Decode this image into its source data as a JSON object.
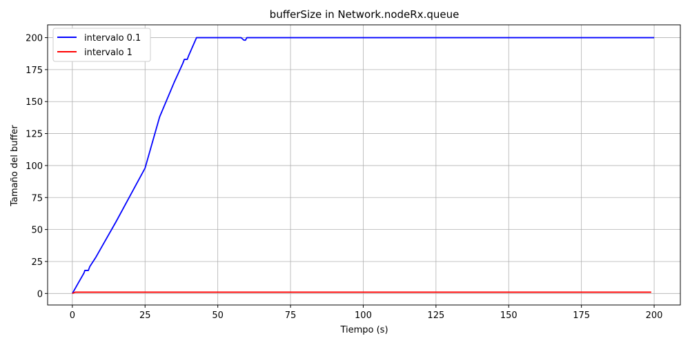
{
  "chart_data": {
    "type": "line",
    "title": "bufferSize in Network.nodeRx.queue",
    "xlabel": "Tiempo (s)",
    "ylabel": "Tamaño del buffer",
    "xlim": [
      -8.5,
      209
    ],
    "ylim": [
      -9,
      210
    ],
    "xticks": [
      0,
      25,
      50,
      75,
      100,
      125,
      150,
      175,
      200
    ],
    "yticks": [
      0,
      25,
      50,
      75,
      100,
      125,
      150,
      175,
      200
    ],
    "grid": true,
    "legend_position": "top-left",
    "series": [
      {
        "name": "intervalo 0.1",
        "color": "#0000ff",
        "x": [
          0,
          1,
          2,
          3,
          4,
          4.3,
          5,
          5.5,
          6,
          8,
          10,
          15,
          20,
          25,
          30,
          35,
          38,
          38.5,
          39.5,
          40,
          42.7,
          43,
          55,
          58,
          59,
          59.5,
          60,
          60.5,
          100,
          150,
          200
        ],
        "y": [
          0,
          4,
          8,
          12,
          16,
          18,
          18,
          18,
          21,
          28,
          36,
          56,
          77,
          98,
          138,
          165,
          180,
          183,
          183,
          186,
          200,
          200,
          200,
          200,
          198,
          198,
          200,
          200,
          200,
          200,
          200
        ]
      },
      {
        "name": "intervalo 1",
        "color": "#ff0000",
        "x": [
          0,
          1,
          50,
          100,
          150,
          199
        ],
        "y": [
          0,
          1,
          1,
          1,
          1,
          1
        ]
      }
    ]
  }
}
